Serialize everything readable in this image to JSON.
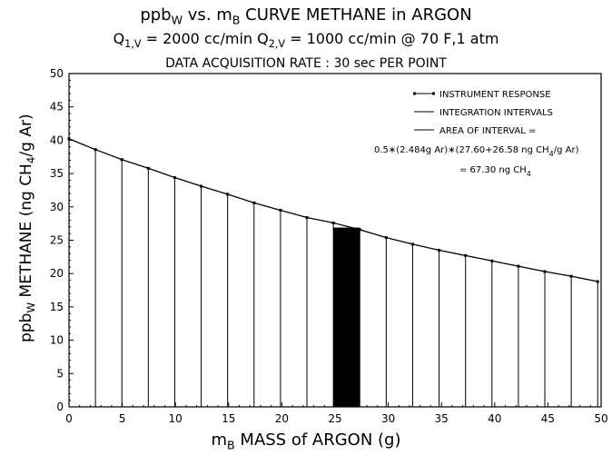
{
  "chart_data": {
    "type": "line",
    "title": {
      "pre": "ppb",
      "sub1": "W",
      "mid": " vs. m",
      "sub2": "B",
      "post": " CURVE METHANE in ARGON"
    },
    "subtitle1": {
      "q1": "Q",
      "q1sub": "1,V",
      "q1val": " = 2000 cc/min  ",
      "q2": "Q",
      "q2sub": "2,V",
      "q2val": " = 1000 cc/min @ 70 F,1 atm"
    },
    "subtitle2": "DATA ACQUISITION RATE : 30 sec PER POINT",
    "xlabel": {
      "pre": "m",
      "sub": "B",
      "post": " MASS of ARGON  (g)"
    },
    "ylabel": {
      "pre": "ppb",
      "sub": "W",
      "mid": " METHANE  (ng CH",
      "sub2": "4",
      "post": "/g Ar)"
    },
    "xlim": [
      0,
      50
    ],
    "ylim": [
      0,
      50
    ],
    "xticks": [
      0,
      5,
      10,
      15,
      20,
      25,
      30,
      35,
      40,
      45,
      50
    ],
    "yticks": [
      0,
      5,
      10,
      15,
      20,
      25,
      30,
      35,
      40,
      45,
      50
    ],
    "series": [
      {
        "name": "INSTRUMENT RESPONSE",
        "x": [
          0,
          2.484,
          4.968,
          7.452,
          9.936,
          12.42,
          14.904,
          17.388,
          19.872,
          22.356,
          24.84,
          27.324,
          29.808,
          32.292,
          34.776,
          37.26,
          39.744,
          42.228,
          44.712,
          47.196,
          49.68
        ],
        "y": [
          40.2,
          38.6,
          37.1,
          35.8,
          34.4,
          33.1,
          31.9,
          30.6,
          29.5,
          28.4,
          27.6,
          26.58,
          25.4,
          24.4,
          23.5,
          22.7,
          21.9,
          21.1,
          20.3,
          19.6,
          18.8
        ]
      }
    ],
    "highlight_interval": {
      "x0": 24.84,
      "x1": 27.324,
      "y": 26.9
    },
    "legend": {
      "placement": "top-right",
      "item1": "INSTRUMENT RESPONSE",
      "item2": "INTEGRATION INTERVALS",
      "item3": "AREA OF INTERVAL =",
      "formula_pre": "0.5∗(2.484g Ar)∗(27.60+26.58 ng CH",
      "formula_sub": "4",
      "formula_post": "/g Ar)",
      "result_pre": "= 67.30 ng CH",
      "result_sub": "4"
    }
  }
}
